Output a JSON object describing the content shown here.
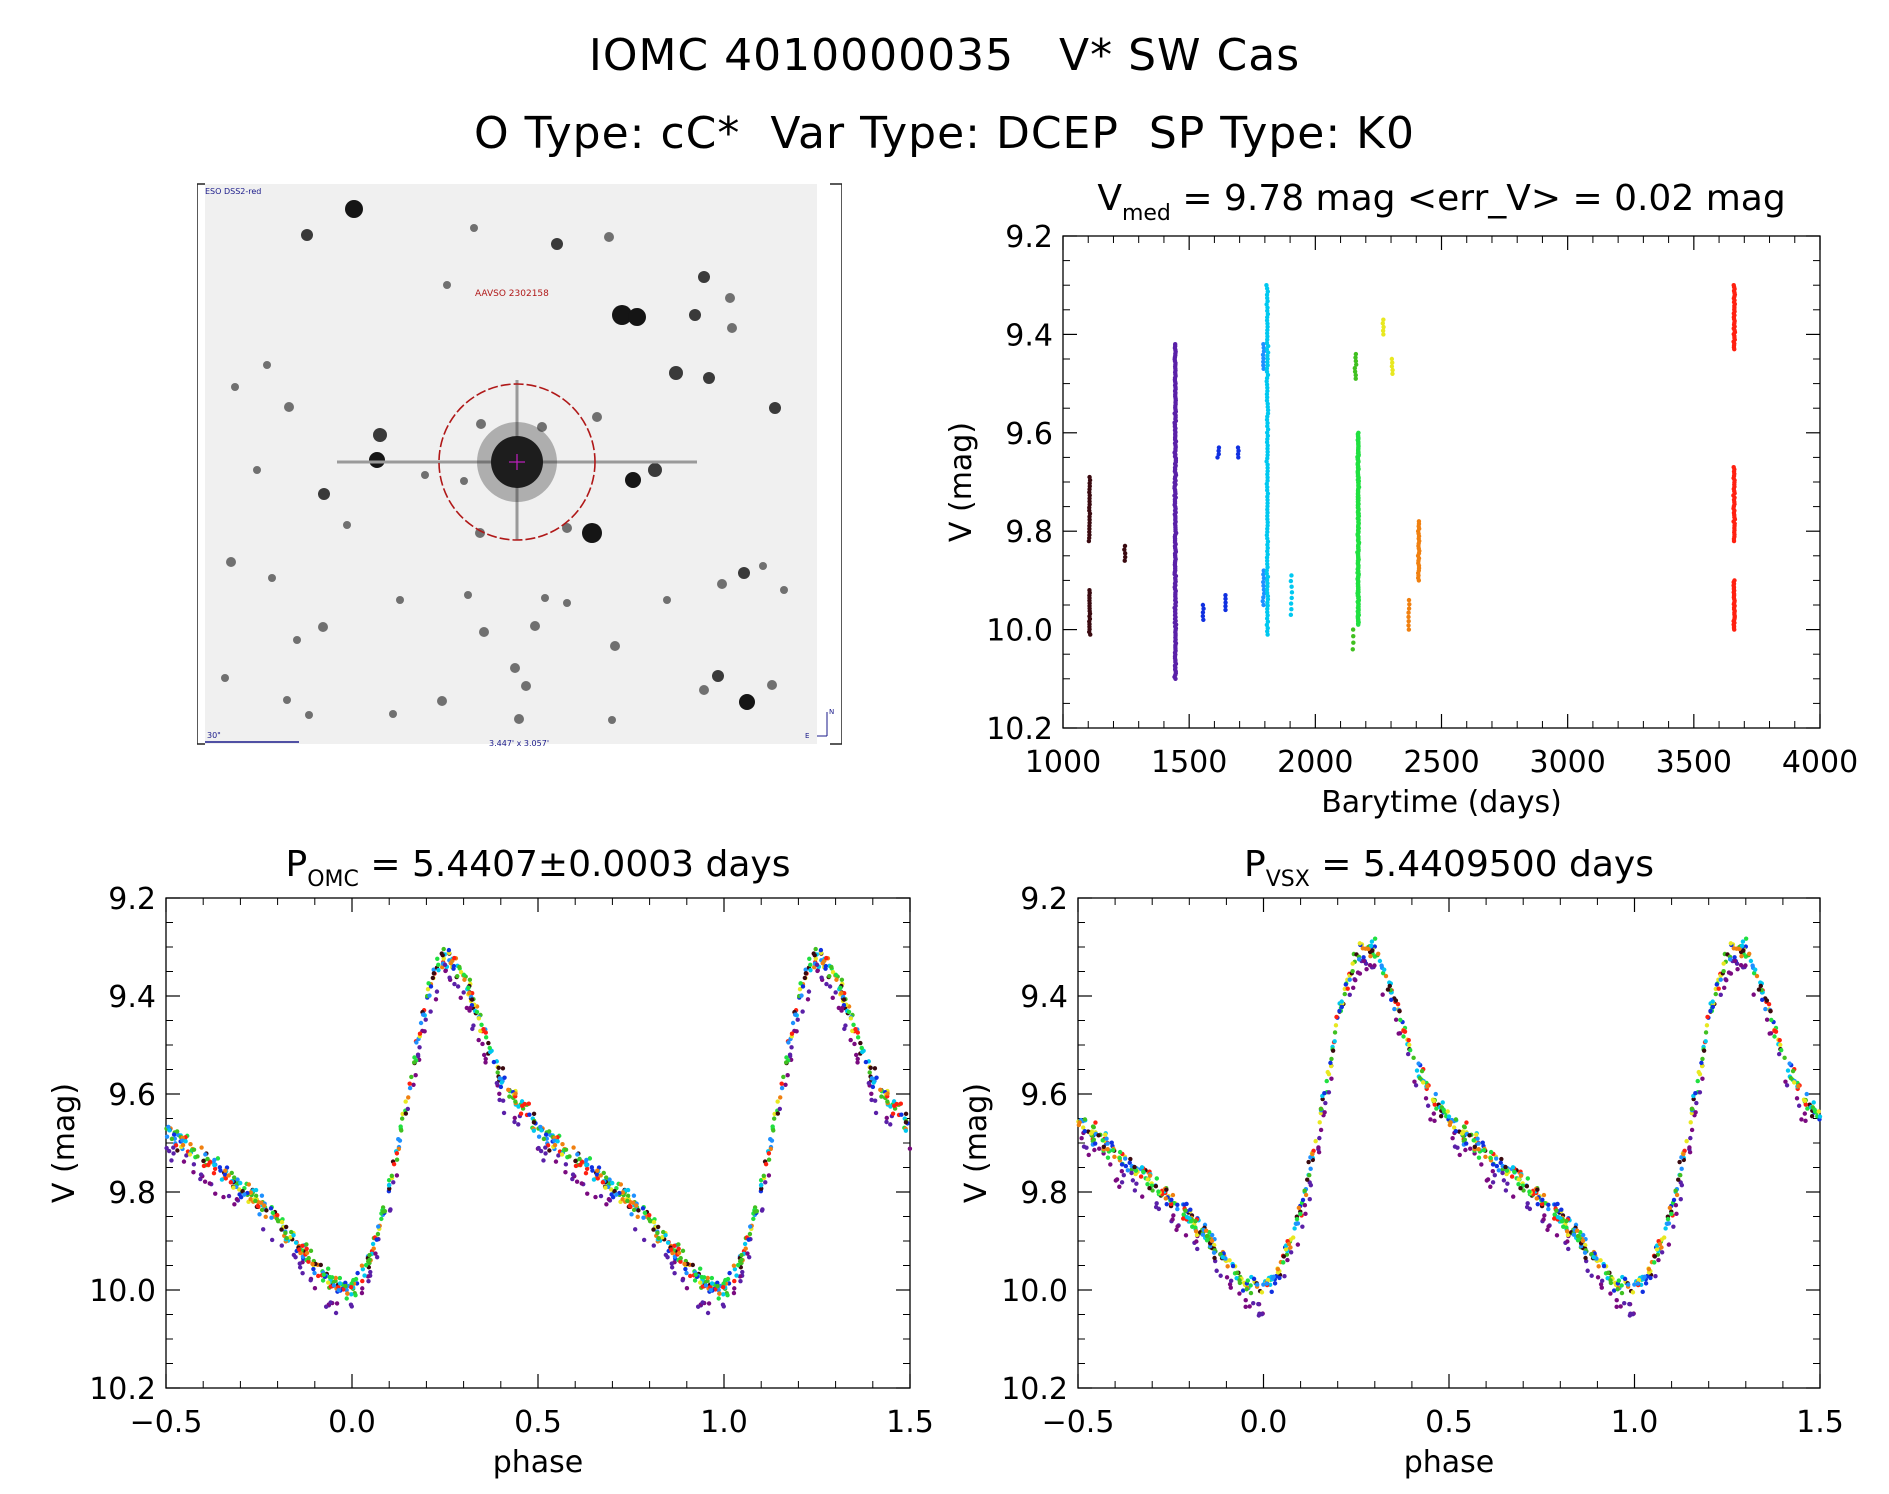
{
  "header": {
    "line1": "IOMC 4010000035   V* SW Cas",
    "line2": "O Type: cC*  Var Type: DCEP  SP Type: K0"
  },
  "finder": {
    "survey_label": "ESO DSS2-red",
    "source_label": "AAVSO 2302158",
    "scale_label": "30\"",
    "fov_label": "3.447' x 3.057'",
    "compass_n": "N",
    "compass_e": "E"
  },
  "colors": {
    "palette": [
      "#3a0a10",
      "#7a0a80",
      "#5a20a8",
      "#1030e0",
      "#1e90ff",
      "#00c8f0",
      "#20e040",
      "#40c020",
      "#e8e820",
      "#f08010",
      "#ff2010"
    ]
  },
  "chart_data": [
    {
      "type": "scatter",
      "title_main": "V",
      "title_sub": "med",
      "title_rest": " = 9.78 mag <err_V> = 0.02 mag",
      "xlabel": "Barytime (days)",
      "ylabel": "V (mag)",
      "xlim": [
        1000,
        4000
      ],
      "ylim": [
        10.2,
        9.2
      ],
      "xticks": [
        "1000",
        "1500",
        "2000",
        "2500",
        "3000",
        "3500",
        "4000"
      ],
      "yticks": [
        "9.2",
        "9.4",
        "9.6",
        "9.8",
        "10.0",
        "10.2"
      ],
      "groups": [
        {
          "x": 1105,
          "y_min": 9.69,
          "y_max": 9.82,
          "n": 22,
          "color": "#3a0a10"
        },
        {
          "x": 1105,
          "y_min": 9.92,
          "y_max": 10.01,
          "n": 18,
          "color": "#3a0a10"
        },
        {
          "x": 1245,
          "y_min": 9.83,
          "y_max": 9.86,
          "n": 5,
          "color": "#3a0a10"
        },
        {
          "x": 1445,
          "y_min": 9.42,
          "y_max": 10.1,
          "n": 180,
          "color": "#5a20a8"
        },
        {
          "x": 1555,
          "y_min": 9.95,
          "y_max": 9.98,
          "n": 5,
          "color": "#1030e0"
        },
        {
          "x": 1615,
          "y_min": 9.63,
          "y_max": 9.65,
          "n": 4,
          "color": "#1030e0"
        },
        {
          "x": 1645,
          "y_min": 9.93,
          "y_max": 9.96,
          "n": 5,
          "color": "#1030e0"
        },
        {
          "x": 1695,
          "y_min": 9.63,
          "y_max": 9.65,
          "n": 4,
          "color": "#1030e0"
        },
        {
          "x": 1795,
          "y_min": 9.42,
          "y_max": 9.47,
          "n": 8,
          "color": "#1e90ff"
        },
        {
          "x": 1795,
          "y_min": 9.88,
          "y_max": 9.95,
          "n": 10,
          "color": "#1e90ff"
        },
        {
          "x": 1810,
          "y_min": 9.3,
          "y_max": 10.01,
          "n": 110,
          "color": "#00c8f0"
        },
        {
          "x": 1905,
          "y_min": 9.89,
          "y_max": 9.97,
          "n": 8,
          "color": "#00c8f0"
        },
        {
          "x": 2160,
          "y_min": 9.44,
          "y_max": 9.49,
          "n": 8,
          "color": "#40c020"
        },
        {
          "x": 2150,
          "y_min": 10.0,
          "y_max": 10.04,
          "n": 4,
          "color": "#40c020"
        },
        {
          "x": 2170,
          "y_min": 9.6,
          "y_max": 9.99,
          "n": 160,
          "color": "#20e040"
        },
        {
          "x": 2270,
          "y_min": 9.37,
          "y_max": 9.4,
          "n": 5,
          "color": "#e8e820"
        },
        {
          "x": 2305,
          "y_min": 9.45,
          "y_max": 9.48,
          "n": 5,
          "color": "#e8e820"
        },
        {
          "x": 2370,
          "y_min": 9.94,
          "y_max": 10.0,
          "n": 8,
          "color": "#f08010"
        },
        {
          "x": 2410,
          "y_min": 9.78,
          "y_max": 9.9,
          "n": 25,
          "color": "#f08010"
        },
        {
          "x": 3660,
          "y_min": 9.3,
          "y_max": 9.43,
          "n": 35,
          "color": "#ff2010"
        },
        {
          "x": 3660,
          "y_min": 9.67,
          "y_max": 9.82,
          "n": 35,
          "color": "#ff2010"
        },
        {
          "x": 3660,
          "y_min": 9.9,
          "y_max": 10.0,
          "n": 30,
          "color": "#ff2010"
        }
      ]
    },
    {
      "type": "scatter",
      "title_main": "P",
      "title_sub": "OMC",
      "title_rest": " = 5.4407±0.0003 days",
      "xlabel": "phase",
      "ylabel": "V (mag)",
      "xlim": [
        -0.5,
        1.5
      ],
      "ylim": [
        10.2,
        9.2
      ],
      "xticks": [
        "−0.5",
        "0.0",
        "0.5",
        "1.0",
        "1.5"
      ],
      "yticks": [
        "9.2",
        "9.4",
        "9.6",
        "9.8",
        "10.0",
        "10.2"
      ],
      "curve": {
        "phase": [
          0.0,
          0.05,
          0.1,
          0.15,
          0.2,
          0.25,
          0.3,
          0.35,
          0.4,
          0.45,
          0.5,
          0.6,
          0.7,
          0.8,
          0.9,
          0.95,
          1.0
        ],
        "mag": [
          10.0,
          9.93,
          9.8,
          9.6,
          9.4,
          9.31,
          9.36,
          9.46,
          9.57,
          9.62,
          9.67,
          9.73,
          9.79,
          9.86,
          9.95,
          9.99,
          10.0
        ]
      }
    },
    {
      "type": "scatter",
      "title_main": "P",
      "title_sub": "VSX",
      "title_rest": " = 5.4409500 days",
      "xlabel": "phase",
      "ylabel": "V (mag)",
      "xlim": [
        -0.5,
        1.5
      ],
      "ylim": [
        10.2,
        9.2
      ],
      "xticks": [
        "−0.5",
        "0.0",
        "0.5",
        "1.0",
        "1.5"
      ],
      "yticks": [
        "9.2",
        "9.4",
        "9.6",
        "9.8",
        "10.0",
        "10.2"
      ],
      "curve": {
        "phase": [
          0.0,
          0.05,
          0.1,
          0.15,
          0.2,
          0.25,
          0.3,
          0.35,
          0.4,
          0.45,
          0.5,
          0.6,
          0.7,
          0.8,
          0.9,
          0.95,
          1.0
        ],
        "mag": [
          10.0,
          9.95,
          9.84,
          9.66,
          9.45,
          9.31,
          9.3,
          9.4,
          9.52,
          9.6,
          9.65,
          9.72,
          9.78,
          9.85,
          9.94,
          9.99,
          10.0
        ]
      }
    }
  ]
}
